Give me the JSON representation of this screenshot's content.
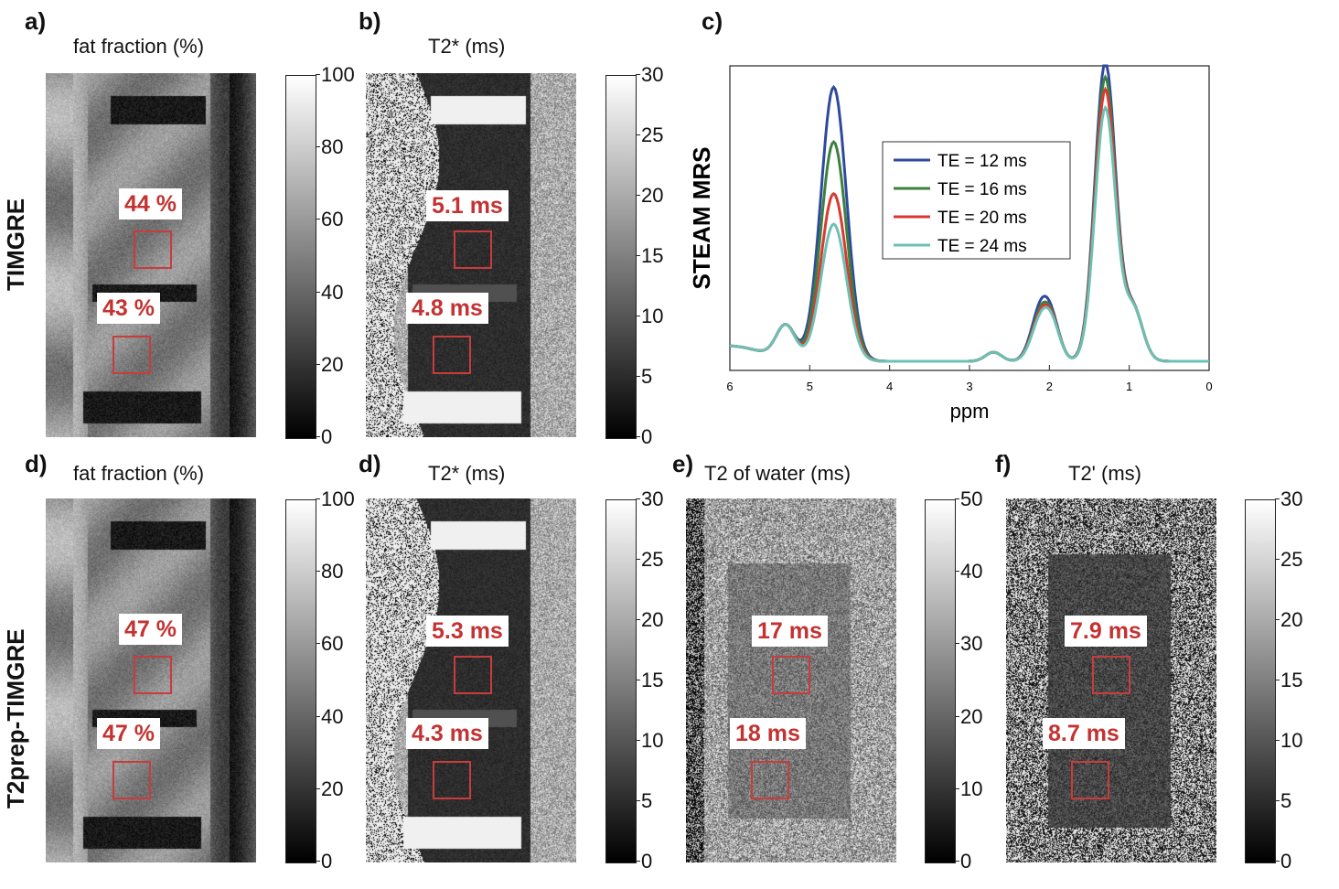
{
  "row_labels": {
    "top": "TIMGRE",
    "bottom": "T2prep-TIMGRE"
  },
  "panels": [
    {
      "id": "a",
      "label": "a)",
      "title": "fat fraction (%)",
      "ticks": [
        "100",
        "80",
        "60",
        "40",
        "20",
        "0"
      ],
      "rois": [
        "44 %",
        "43 %"
      ],
      "colormap": "gray"
    },
    {
      "id": "b",
      "label": "b)",
      "title": "T2* (ms)",
      "ticks": [
        "30",
        "25",
        "20",
        "15",
        "10",
        "5",
        "0"
      ],
      "rois": [
        "5.1 ms",
        "4.8 ms"
      ],
      "colormap": "gray"
    },
    {
      "id": "d1",
      "label": "d)",
      "title": "fat fraction (%)",
      "ticks": [
        "100",
        "80",
        "60",
        "40",
        "20",
        "0"
      ],
      "rois": [
        "47 %",
        "47 %"
      ],
      "colormap": "gray"
    },
    {
      "id": "d2",
      "label": "d)",
      "title": "T2* (ms)",
      "ticks": [
        "30",
        "25",
        "20",
        "15",
        "10",
        "5",
        "0"
      ],
      "rois": [
        "5.3 ms",
        "4.3 ms"
      ],
      "colormap": "gray"
    },
    {
      "id": "e",
      "label": "e)",
      "title": "T2 of water (ms)",
      "ticks": [
        "50",
        "40",
        "30",
        "20",
        "10",
        "0"
      ],
      "rois": [
        "17 ms",
        "18 ms"
      ],
      "colormap": "gray"
    },
    {
      "id": "f",
      "label": "f)",
      "title": "T2' (ms)",
      "ticks": [
        "30",
        "25",
        "20",
        "15",
        "10",
        "5",
        "0"
      ],
      "rois": [
        "7.9 ms",
        "8.7 ms"
      ],
      "colormap": "gray"
    }
  ],
  "chart_data": {
    "label": "c)",
    "type": "line",
    "ylabel": "STEAM MRS",
    "xlabel": "ppm",
    "xlim": [
      6,
      0
    ],
    "x_reversed": true,
    "x_ticks": [
      "6",
      "5",
      "4",
      "3",
      "2",
      "1",
      "0"
    ],
    "y_unit": "arbitrary (no y-axis ticks shown)",
    "legend_position": "center",
    "peaks_ppm": [
      4.7,
      1.3
    ],
    "series": [
      {
        "name": "TE = 12 ms",
        "color": "#2f4a9c",
        "water_peak": 0.9,
        "fat_peak": 0.98,
        "fat_side_2_1": 0.18
      },
      {
        "name": "TE = 16 ms",
        "color": "#3c8040",
        "water_peak": 0.72,
        "fat_peak": 0.93,
        "fat_side_2_1": 0.16
      },
      {
        "name": "TE = 20 ms",
        "color": "#d83a32",
        "water_peak": 0.55,
        "fat_peak": 0.89,
        "fat_side_2_1": 0.15
      },
      {
        "name": "TE = 24 ms",
        "color": "#6cc0b4",
        "water_peak": 0.45,
        "fat_peak": 0.83,
        "fat_side_2_1": 0.14
      }
    ]
  }
}
